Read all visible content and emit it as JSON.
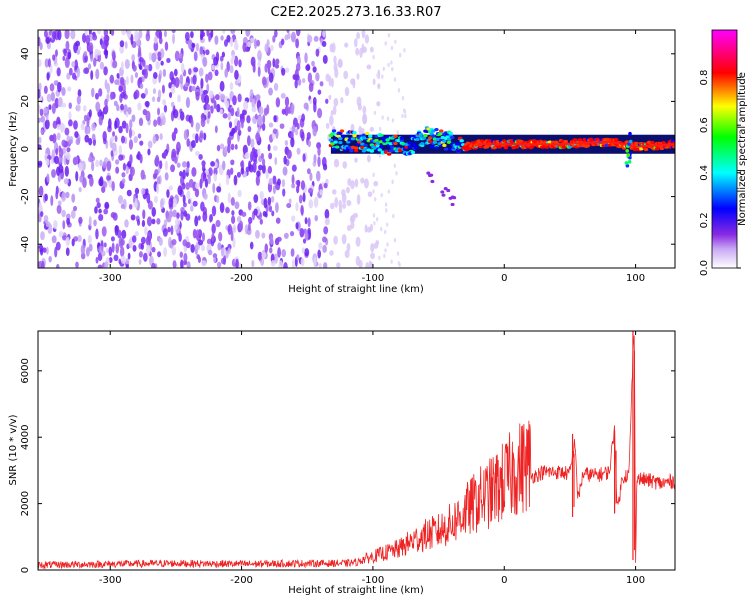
{
  "title": "C2E2.2025.273.16.33.R07",
  "chart_data": [
    {
      "type": "heatmap",
      "xlabel": "Height of straight line (km)",
      "ylabel": "Frequency (Hz)",
      "xlim": [
        -355,
        130
      ],
      "ylim": [
        -50,
        50
      ],
      "x_ticks": [
        -300,
        -200,
        -100,
        0,
        100
      ],
      "y_ticks": [
        -40,
        -20,
        0,
        20,
        40
      ],
      "x_tick_labels": [
        "-300",
        "-200",
        "-100",
        "0",
        "100"
      ],
      "y_tick_labels": [
        "-40",
        "-20",
        "0",
        "20",
        "40"
      ],
      "noise_region_x": [
        -355,
        -95
      ],
      "signal_band": {
        "x_start": -132,
        "x_end": 130,
        "center_hz": [
          {
            "x": -132,
            "y": 4
          },
          {
            "x": -110,
            "y": 3
          },
          {
            "x": -90,
            "y": 2
          },
          {
            "x": -75,
            "y": 1
          },
          {
            "x": -60,
            "y": 5
          },
          {
            "x": -45,
            "y": 4
          },
          {
            "x": -30,
            "y": 1
          },
          {
            "x": -20,
            "y": 2
          },
          {
            "x": 0,
            "y": 2
          },
          {
            "x": 40,
            "y": 2
          },
          {
            "x": 80,
            "y": 3
          },
          {
            "x": 100,
            "y": 1
          },
          {
            "x": 130,
            "y": 2
          }
        ],
        "branch": [
          {
            "x": -55,
            "y": -12
          },
          {
            "x": -45,
            "y": -18
          },
          {
            "x": -40,
            "y": -22
          }
        ]
      },
      "colorbar": {
        "label": "Normalized spectral amplitude",
        "range": [
          0,
          1
        ],
        "ticks": [
          0.0,
          0.2,
          0.4,
          0.6,
          0.8
        ],
        "tick_labels": [
          "0.0",
          "0.2",
          "0.4",
          "0.6",
          "0.8"
        ],
        "colors": [
          "#ffffff",
          "#8a2be2",
          "#0000ff",
          "#00ffff",
          "#00ff00",
          "#ffff00",
          "#ff0000",
          "#ff00ff"
        ]
      },
      "grid": false,
      "colors": {
        "noise": "#7b2ff7",
        "band_edge": "#000000"
      }
    },
    {
      "type": "line",
      "xlabel": "Height of straight line (km)",
      "ylabel": "SNR (10 * v/v)",
      "xlim": [
        -355,
        130
      ],
      "ylim": [
        0,
        7200
      ],
      "x_ticks": [
        -300,
        -200,
        -100,
        0,
        100
      ],
      "y_ticks": [
        0,
        2000,
        4000,
        6000
      ],
      "x_tick_labels": [
        "-300",
        "-200",
        "-100",
        "0",
        "100"
      ],
      "y_tick_labels": [
        "0",
        "2000",
        "4000",
        "6000"
      ],
      "series": [
        {
          "color": "#ee2222",
          "x": [
            -355,
            -300,
            -250,
            -200,
            -150,
            -120,
            -110,
            -100,
            -90,
            -80,
            -70,
            -60,
            -50,
            -40,
            -30,
            -20,
            -10,
            0,
            10,
            20,
            30,
            40,
            50,
            54,
            56,
            60,
            70,
            80,
            84,
            86,
            90,
            95,
            98,
            99,
            100,
            101,
            102,
            110,
            120,
            130
          ],
          "y": [
            150,
            180,
            200,
            180,
            200,
            200,
            250,
            350,
            450,
            550,
            750,
            900,
            1000,
            1200,
            1500,
            1800,
            2000,
            2300,
            2600,
            2800,
            2950,
            2950,
            2900,
            3900,
            2100,
            2900,
            2850,
            2950,
            4300,
            1800,
            2800,
            2900,
            6500,
            7200,
            400,
            2900,
            2750,
            2700,
            2600,
            2700
          ]
        }
      ],
      "spikes": [
        {
          "x": 52,
          "y": 4100,
          "low": 1600
        },
        {
          "x": 84,
          "y": 4200,
          "low": 1700
        },
        {
          "x": 98,
          "y": 7200,
          "low": 300
        }
      ],
      "grid": false
    }
  ]
}
